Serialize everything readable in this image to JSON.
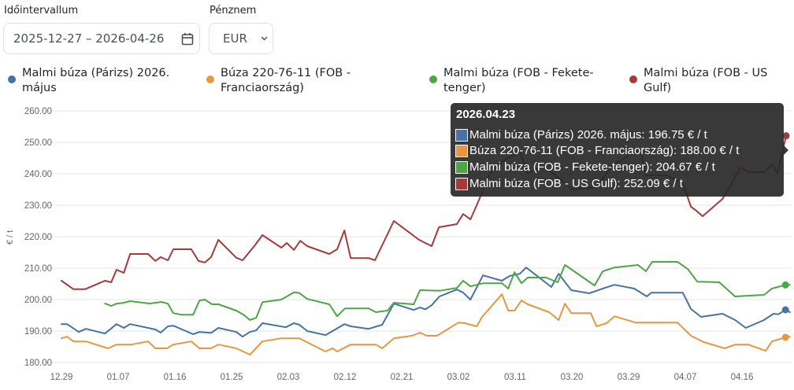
{
  "controls": {
    "date_label": "Időintervallum",
    "date_value": "2025-12-27 – 2026-04-26",
    "currency_label": "Pénznem",
    "currency_value": "EUR"
  },
  "chart_data": {
    "type": "line",
    "ylabel": "€ / t",
    "xlabel": "",
    "x_unit": "days since 2025-12-29",
    "ylim": [
      180,
      260
    ],
    "yticks": [
      "260.00",
      "250.00",
      "240.00",
      "230.00",
      "220.00",
      "210.00",
      "200.00",
      "190.00",
      "180.00"
    ],
    "ytick_values": [
      260,
      250,
      240,
      230,
      220,
      210,
      200,
      190,
      180
    ],
    "xticks": [
      "12.29",
      "01.07",
      "01.16",
      "01.25",
      "02.03",
      "02.12",
      "02.21",
      "03.02",
      "03.11",
      "03.20",
      "03.29",
      "04.07",
      "04.16"
    ],
    "xtick_values": [
      0,
      9,
      18,
      27,
      36,
      45,
      54,
      63,
      72,
      81,
      90,
      99,
      108
    ],
    "xlim": [
      -4,
      116
    ],
    "grid": true,
    "legend_position": "top",
    "series": [
      {
        "name": "Malmi búza (Párizs) 2026. május",
        "color": "#4572a7",
        "points": [
          [
            0,
            192.2
          ],
          [
            0.9,
            192.2
          ],
          [
            2.75,
            189.7
          ],
          [
            3.9,
            190.7
          ],
          [
            6.9,
            189.2
          ],
          [
            8.75,
            192.2
          ],
          [
            9.9,
            191
          ],
          [
            10.9,
            192.2
          ],
          [
            14.9,
            190.5
          ],
          [
            15.75,
            189.5
          ],
          [
            16.9,
            191.5
          ],
          [
            17.75,
            191.7
          ],
          [
            20.9,
            189
          ],
          [
            21.9,
            189.7
          ],
          [
            23.75,
            189.4
          ],
          [
            24.9,
            191
          ],
          [
            27.75,
            189.7
          ],
          [
            28.75,
            188.2
          ],
          [
            29.9,
            189.7
          ],
          [
            30.9,
            190.2
          ],
          [
            31.9,
            192.5
          ],
          [
            35.6,
            191.2
          ],
          [
            36.9,
            192.5
          ],
          [
            37.75,
            192
          ],
          [
            39,
            190
          ],
          [
            41.9,
            188.7
          ],
          [
            44.9,
            192.2
          ],
          [
            45.9,
            191.5
          ],
          [
            48.75,
            190.7
          ],
          [
            50.9,
            192
          ],
          [
            52.75,
            198.7
          ],
          [
            55.9,
            196.7
          ],
          [
            56.9,
            197.5
          ],
          [
            57.75,
            196.9
          ],
          [
            58.75,
            198.2
          ],
          [
            60,
            201
          ],
          [
            62.75,
            203.2
          ],
          [
            63.75,
            202.2
          ],
          [
            64.9,
            200
          ],
          [
            66.9,
            207.7
          ],
          [
            69.9,
            206
          ],
          [
            71.1,
            207.5
          ],
          [
            72.75,
            208.2
          ],
          [
            73.75,
            210.2
          ],
          [
            77.75,
            204
          ],
          [
            78.9,
            208.2
          ],
          [
            80.9,
            203
          ],
          [
            83.75,
            202
          ],
          [
            85.9,
            203.5
          ],
          [
            87.75,
            204.7
          ],
          [
            90.9,
            203.5
          ],
          [
            92.9,
            201
          ],
          [
            93.6,
            202.2
          ],
          [
            98.6,
            202.2
          ],
          [
            99.9,
            197
          ],
          [
            101.5,
            194.5
          ],
          [
            104.9,
            195.5
          ],
          [
            106.9,
            193.5
          ],
          [
            108.6,
            191
          ],
          [
            111.5,
            193.5
          ],
          [
            113,
            195.5
          ],
          [
            113.75,
            195.3
          ],
          [
            114.9,
            196.75
          ],
          [
            115.6,
            196
          ]
        ]
      },
      {
        "name": "Búza 220-76-11 (FOB - Franciaország)",
        "color": "#e8963f",
        "points": [
          [
            0,
            187.7
          ],
          [
            0.9,
            188.2
          ],
          [
            1.9,
            186.7
          ],
          [
            3.9,
            186.7
          ],
          [
            7.4,
            184.5
          ],
          [
            8.75,
            185.7
          ],
          [
            11.1,
            185.7
          ],
          [
            13.75,
            186.7
          ],
          [
            14.9,
            184.5
          ],
          [
            16.75,
            184.5
          ],
          [
            17.75,
            185.7
          ],
          [
            20.6,
            186.7
          ],
          [
            21.9,
            184.5
          ],
          [
            23.75,
            184.5
          ],
          [
            24.9,
            185.7
          ],
          [
            27.75,
            184.5
          ],
          [
            29.9,
            182.5
          ],
          [
            31.9,
            186.7
          ],
          [
            34.9,
            187.7
          ],
          [
            37.75,
            187.7
          ],
          [
            41.9,
            183.5
          ],
          [
            43,
            184.5
          ],
          [
            43.75,
            183.5
          ],
          [
            45.9,
            185.7
          ],
          [
            49.9,
            185.7
          ],
          [
            50.9,
            184.5
          ],
          [
            52.75,
            187.7
          ],
          [
            55.6,
            188.5
          ],
          [
            56.9,
            189.5
          ],
          [
            58,
            188.5
          ],
          [
            59.6,
            188.5
          ],
          [
            63,
            192.7
          ],
          [
            64,
            192.5
          ],
          [
            65.9,
            191.5
          ],
          [
            66.75,
            194.5
          ],
          [
            69.9,
            201.7
          ],
          [
            70.9,
            196.5
          ],
          [
            71.9,
            196.5
          ],
          [
            73,
            199.7
          ],
          [
            74,
            198.5
          ],
          [
            77.4,
            196
          ],
          [
            78.9,
            193.5
          ],
          [
            79.9,
            198.7
          ],
          [
            80.9,
            195.7
          ],
          [
            84,
            195.7
          ],
          [
            84.9,
            191.5
          ],
          [
            86.5,
            192.5
          ],
          [
            87.75,
            194.7
          ],
          [
            91.1,
            192.7
          ],
          [
            97.75,
            192.7
          ],
          [
            99.9,
            188.5
          ],
          [
            101.9,
            186.5
          ],
          [
            105.25,
            184.5
          ],
          [
            106.9,
            185.7
          ],
          [
            109,
            185.7
          ],
          [
            111.75,
            183.7
          ],
          [
            112.75,
            186.7
          ],
          [
            114.9,
            188
          ],
          [
            115.6,
            188.2
          ]
        ]
      },
      {
        "name": "Malmi búza (FOB - Fekete-tenger)",
        "color": "#4ea546",
        "points": [
          [
            6.9,
            198.75
          ],
          [
            7.9,
            198
          ],
          [
            8.75,
            198.7
          ],
          [
            9.9,
            199
          ],
          [
            10.9,
            199.5
          ],
          [
            14,
            198.75
          ],
          [
            15.9,
            199.25
          ],
          [
            16.9,
            198.7
          ],
          [
            17.75,
            195.7
          ],
          [
            19,
            195.2
          ],
          [
            20.9,
            195.2
          ],
          [
            21.9,
            199.7
          ],
          [
            22.75,
            200
          ],
          [
            23.9,
            198.5
          ],
          [
            24.9,
            198.5
          ],
          [
            27.75,
            196.5
          ],
          [
            28.9,
            195.2
          ],
          [
            29.9,
            193.5
          ],
          [
            30.9,
            194.2
          ],
          [
            31.9,
            199.2
          ],
          [
            34.9,
            200
          ],
          [
            36.9,
            202.3
          ],
          [
            37.75,
            202.1
          ],
          [
            39,
            200.2
          ],
          [
            42.5,
            198.5
          ],
          [
            43.75,
            194.7
          ],
          [
            45,
            197.2
          ],
          [
            48.75,
            197.2
          ],
          [
            49.9,
            196
          ],
          [
            51.75,
            196.5
          ],
          [
            52.75,
            199
          ],
          [
            55.9,
            198.5
          ],
          [
            56.9,
            203
          ],
          [
            60,
            202.8
          ],
          [
            62.75,
            203.7
          ],
          [
            63.75,
            206
          ],
          [
            64.9,
            204.2
          ],
          [
            66.9,
            205.2
          ],
          [
            69.9,
            205.2
          ],
          [
            70.9,
            203.5
          ],
          [
            71.9,
            208.7
          ],
          [
            73,
            205.2
          ],
          [
            74,
            207
          ],
          [
            76.9,
            207
          ],
          [
            78.75,
            205.5
          ],
          [
            79.9,
            211
          ],
          [
            84.6,
            204.5
          ],
          [
            85.9,
            209
          ],
          [
            87.75,
            210.2
          ],
          [
            91.5,
            211
          ],
          [
            92.75,
            209
          ],
          [
            93.75,
            212
          ],
          [
            97.75,
            212
          ],
          [
            99.4,
            209.7
          ],
          [
            100.9,
            205.7
          ],
          [
            104.4,
            205.5
          ],
          [
            106.9,
            201
          ],
          [
            111.5,
            201.5
          ],
          [
            112.75,
            203.5
          ],
          [
            114.9,
            204.67
          ],
          [
            115.6,
            204.7
          ]
        ]
      },
      {
        "name": "Malmi búza (FOB - US Gulf)",
        "color": "#a63a3a",
        "points": [
          [
            0,
            206
          ],
          [
            1.9,
            203.3
          ],
          [
            3.75,
            203.3
          ],
          [
            6.9,
            206
          ],
          [
            7.9,
            205.5
          ],
          [
            8.75,
            209.5
          ],
          [
            9.9,
            208.5
          ],
          [
            10.9,
            214.5
          ],
          [
            13.75,
            214.5
          ],
          [
            14.9,
            212.3
          ],
          [
            15.75,
            213.5
          ],
          [
            16.9,
            212.5
          ],
          [
            17.75,
            216
          ],
          [
            20.6,
            216
          ],
          [
            21.75,
            212.3
          ],
          [
            22.75,
            211.8
          ],
          [
            23.75,
            213.5
          ],
          [
            24.9,
            219
          ],
          [
            27.75,
            213.3
          ],
          [
            28.75,
            212.5
          ],
          [
            30.6,
            217
          ],
          [
            31.9,
            220.5
          ],
          [
            34.9,
            216.5
          ],
          [
            35.75,
            218
          ],
          [
            36.9,
            215.8
          ],
          [
            37.9,
            218.7
          ],
          [
            39,
            217
          ],
          [
            42.5,
            214.5
          ],
          [
            43.75,
            216
          ],
          [
            44.9,
            222
          ],
          [
            45.9,
            213.2
          ],
          [
            48.75,
            213.2
          ],
          [
            49.75,
            212.5
          ],
          [
            52.75,
            225
          ],
          [
            56.75,
            219
          ],
          [
            57.75,
            218
          ],
          [
            58.75,
            217
          ],
          [
            59.9,
            223
          ],
          [
            62.75,
            224
          ],
          [
            63.75,
            227.2
          ],
          [
            64.9,
            225.5
          ],
          [
            65.9,
            230
          ],
          [
            68,
            240
          ],
          [
            70,
            244
          ],
          [
            72.75,
            247
          ],
          [
            74,
            240
          ],
          [
            76.5,
            242.7
          ],
          [
            78.1,
            240
          ],
          [
            81.1,
            235
          ],
          [
            84.9,
            235.7
          ],
          [
            87.4,
            242.7
          ],
          [
            91.1,
            247
          ],
          [
            91.9,
            247
          ],
          [
            92.75,
            239.5
          ],
          [
            96.1,
            239.5
          ],
          [
            98.6,
            237
          ],
          [
            99.9,
            229.5
          ],
          [
            100.6,
            228.5
          ],
          [
            101.75,
            226.5
          ],
          [
            104.9,
            232
          ],
          [
            106.1,
            236
          ],
          [
            107.75,
            242
          ],
          [
            109,
            240.5
          ],
          [
            111.5,
            240.5
          ],
          [
            112.75,
            243
          ],
          [
            113.6,
            240
          ],
          [
            115,
            252.09
          ]
        ]
      }
    ],
    "markers": [
      [
        114.9,
        196.75
      ],
      [
        114.9,
        188
      ],
      [
        114.9,
        204.67
      ],
      [
        115,
        252.09
      ]
    ],
    "tooltip": {
      "title": "2026.04.23",
      "rows": [
        "Malmi búza (Párizs) 2026. május: 196.75 € / t",
        "Búza 220-76-11 (FOB - Franciaország): 188.00 € / t",
        "Malmi búza (FOB - Fekete-tenger): 204.67 € / t",
        "Malmi búza (FOB - US Gulf): 252.09 € / t"
      ]
    }
  }
}
